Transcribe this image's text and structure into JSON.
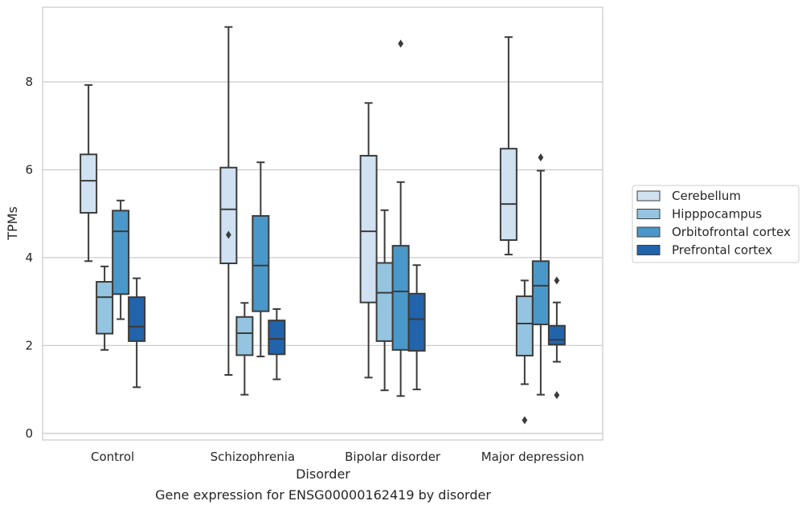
{
  "chart_data": {
    "type": "box",
    "xlabel": "Disorder",
    "ylabel": "TPMs",
    "caption": "Gene expression for ENSG00000162419 by disorder",
    "ylim": [
      -0.15,
      9.7
    ],
    "yticks": [
      0,
      2,
      4,
      6,
      8
    ],
    "grid": "horizontal",
    "legend_position": "right",
    "categories": [
      "Control",
      "Schizophrenia",
      "Bipolar disorder",
      "Major depression"
    ],
    "series": [
      {
        "name": "Cerebellum",
        "color": "#d0e1f2",
        "boxes": [
          {
            "whislo": 3.92,
            "q1": 5.02,
            "med": 5.75,
            "q3": 6.35,
            "whishi": 7.93,
            "fliers": []
          },
          {
            "whislo": 1.33,
            "q1": 3.87,
            "med": 5.1,
            "q3": 6.05,
            "whishi": 9.25,
            "fliers": [
              4.52
            ]
          },
          {
            "whislo": 1.27,
            "q1": 2.98,
            "med": 4.6,
            "q3": 6.32,
            "whishi": 7.52,
            "fliers": []
          },
          {
            "whislo": 4.07,
            "q1": 4.4,
            "med": 5.22,
            "q3": 6.48,
            "whishi": 9.02,
            "fliers": []
          }
        ]
      },
      {
        "name": "Hipppocampus",
        "color": "#94c4df",
        "boxes": [
          {
            "whislo": 1.9,
            "q1": 2.27,
            "med": 3.1,
            "q3": 3.45,
            "whishi": 3.8,
            "fliers": []
          },
          {
            "whislo": 0.88,
            "q1": 1.78,
            "med": 2.28,
            "q3": 2.65,
            "whishi": 2.97,
            "fliers": []
          },
          {
            "whislo": 0.98,
            "q1": 2.1,
            "med": 3.2,
            "q3": 3.88,
            "whishi": 5.08,
            "fliers": []
          },
          {
            "whislo": 1.12,
            "q1": 1.77,
            "med": 2.5,
            "q3": 3.12,
            "whishi": 3.48,
            "fliers": [
              0.3
            ]
          }
        ]
      },
      {
        "name": "Orbitofrontal cortex",
        "color": "#4a98c9",
        "boxes": [
          {
            "whislo": 2.6,
            "q1": 3.17,
            "med": 4.6,
            "q3": 5.07,
            "whishi": 5.3,
            "fliers": []
          },
          {
            "whislo": 1.75,
            "q1": 2.78,
            "med": 3.82,
            "q3": 4.95,
            "whishi": 6.17,
            "fliers": []
          },
          {
            "whislo": 0.85,
            "q1": 1.9,
            "med": 3.23,
            "q3": 4.27,
            "whishi": 5.72,
            "fliers": [
              8.87
            ]
          },
          {
            "whislo": 0.88,
            "q1": 2.48,
            "med": 3.36,
            "q3": 3.92,
            "whishi": 5.98,
            "fliers": [
              6.28
            ]
          }
        ]
      },
      {
        "name": "Prefrontal cortex",
        "color": "#2164ab",
        "boxes": [
          {
            "whislo": 1.05,
            "q1": 2.1,
            "med": 2.43,
            "q3": 3.1,
            "whishi": 3.53,
            "fliers": []
          },
          {
            "whislo": 1.23,
            "q1": 1.8,
            "med": 2.15,
            "q3": 2.57,
            "whishi": 2.83,
            "fliers": []
          },
          {
            "whislo": 1.0,
            "q1": 1.88,
            "med": 2.6,
            "q3": 3.18,
            "whishi": 3.83,
            "fliers": []
          },
          {
            "whislo": 1.63,
            "q1": 2.02,
            "med": 2.13,
            "q3": 2.45,
            "whishi": 2.98,
            "fliers": [
              0.87,
              3.48
            ]
          }
        ]
      }
    ],
    "style": {
      "line_color": "#3b3b3b",
      "grid_color": "#cccccc",
      "frame_color": "#cccccc"
    }
  }
}
